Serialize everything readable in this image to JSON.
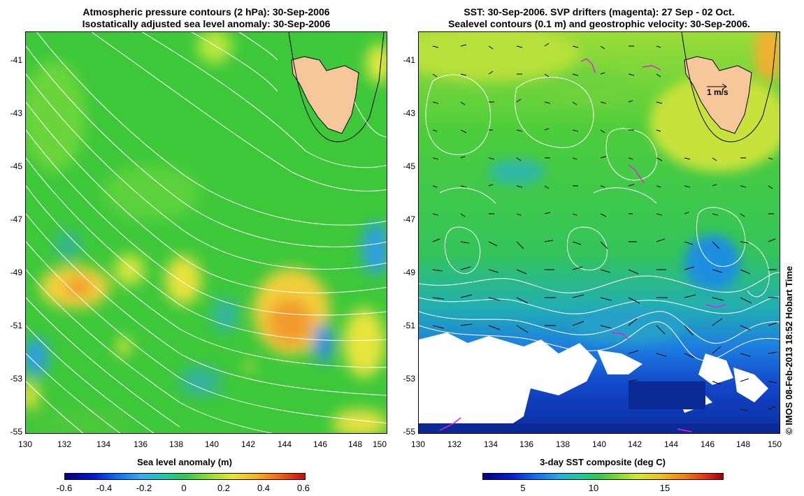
{
  "left": {
    "title_line1": "Atmospheric pressure contours (2 hPa): 30-Sep-2006",
    "title_line2": "Isostatically adjusted sea level anomaly: 30-Sep-2006",
    "colorbar_label": "Sea level anomaly (m)",
    "colorbar_ticks": [
      "-0.6",
      "-0.4",
      "-0.2",
      "0",
      "0.2",
      "0.4",
      "0.6"
    ]
  },
  "right": {
    "title_line1": "SST: 30-Sep-2006. SVP drifters (magenta): 27 Sep - 02 Oct.",
    "title_line2": "Sealevel contours (0.1 m) and geostrophic velocity: 30-Sep-2006.",
    "colorbar_label": "3-day SST composite (deg C)",
    "colorbar_ticks": [
      "5",
      "10",
      "15"
    ],
    "velocity_scale_label": "1 m/s"
  },
  "lat_ticks": [
    "-41",
    "-43",
    "-45",
    "-47",
    "-49",
    "-51",
    "-53",
    "-55"
  ],
  "lon_ticks": [
    "130",
    "132",
    "134",
    "136",
    "138",
    "140",
    "142",
    "144",
    "146",
    "148",
    "150"
  ],
  "credit": "© IMOS 08-Feb-2013 18:52 Hobart Time",
  "colors": {
    "land": "#f7c79a",
    "sla_background": "#3dc83a",
    "contour": "#ffffff",
    "drifter": "#e020e0"
  }
}
